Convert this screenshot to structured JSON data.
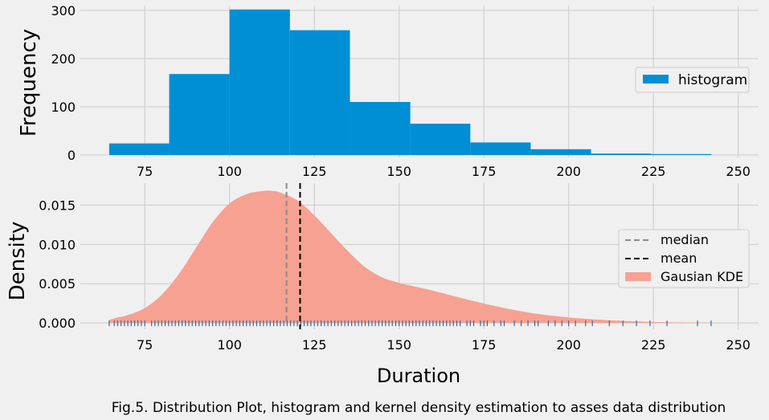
{
  "caption": "Fig.5. Distribution Plot, histogram and kernel density estimation to asses data distribution",
  "colors": {
    "background": "#f0f0f0",
    "grid": "#cbcbcb",
    "histogram": "#008fd5",
    "kde_fill": "#f6a191",
    "median": "#8b8b8b",
    "mean": "#000000",
    "rug": "#2b6fa8",
    "text": "#000000"
  },
  "chart_data": [
    {
      "type": "bar",
      "title": "",
      "xlabel": "",
      "ylabel": "Frequency",
      "xlim": [
        56,
        256
      ],
      "ylim": [
        -5,
        310
      ],
      "xticks": [
        75,
        100,
        125,
        150,
        175,
        200,
        225,
        250
      ],
      "yticks": [
        0,
        100,
        200,
        300
      ],
      "grid": true,
      "legend": {
        "placement": "right",
        "entries": [
          "histogram"
        ]
      },
      "bins": [
        {
          "x0": 64.5,
          "x1": 82.2,
          "count": 24
        },
        {
          "x0": 82.2,
          "x1": 100.0,
          "count": 168
        },
        {
          "x0": 100.0,
          "x1": 117.8,
          "count": 302
        },
        {
          "x0": 117.8,
          "x1": 135.5,
          "count": 259
        },
        {
          "x0": 135.5,
          "x1": 153.3,
          "count": 110
        },
        {
          "x0": 153.3,
          "x1": 171.0,
          "count": 65
        },
        {
          "x0": 171.0,
          "x1": 188.8,
          "count": 26
        },
        {
          "x0": 188.8,
          "x1": 206.6,
          "count": 12
        },
        {
          "x0": 206.6,
          "x1": 224.3,
          "count": 3
        },
        {
          "x0": 224.3,
          "x1": 242.1,
          "count": 2
        }
      ],
      "series": [
        {
          "name": "histogram"
        }
      ]
    },
    {
      "type": "area",
      "title": "",
      "xlabel": "Duration",
      "ylabel": "Density",
      "xlim": [
        56,
        256
      ],
      "ylim": [
        -0.0008,
        0.0178
      ],
      "xticks": [
        75,
        100,
        125,
        150,
        175,
        200,
        225,
        250
      ],
      "yticks": [
        0.0,
        0.005,
        0.01,
        0.015
      ],
      "ytick_labels": [
        "0.000",
        "0.005",
        "0.010",
        "0.015"
      ],
      "grid": true,
      "legend": {
        "placement": "right",
        "entries": [
          "median",
          "mean",
          "Gausian KDE"
        ]
      },
      "kde": {
        "x": [
          64.5,
          67,
          70,
          75,
          80,
          85,
          90,
          95,
          100,
          105,
          110,
          112.5,
          115,
          120,
          125,
          130,
          135,
          140,
          145,
          150,
          155,
          160,
          170,
          180,
          190,
          200,
          210,
          220,
          230,
          242
        ],
        "y": [
          0.0004,
          0.0007,
          0.001,
          0.0019,
          0.0036,
          0.0062,
          0.0095,
          0.0128,
          0.0152,
          0.0164,
          0.0168,
          0.0168,
          0.0166,
          0.0156,
          0.0137,
          0.0114,
          0.0091,
          0.0071,
          0.0058,
          0.0051,
          0.0046,
          0.0041,
          0.003,
          0.002,
          0.0012,
          0.0007,
          0.0004,
          0.0002,
          0.0001,
          5e-05
        ]
      },
      "median": 116.8,
      "mean": 120.8,
      "rug": [
        64.5,
        66,
        67,
        68,
        69,
        70,
        71,
        72,
        73,
        74,
        75,
        77,
        78,
        79,
        80,
        81,
        82,
        83,
        84,
        85,
        86,
        87,
        88,
        89,
        90,
        91,
        92,
        93,
        94,
        95,
        96,
        97,
        98,
        99,
        100,
        101,
        102,
        103,
        104,
        105,
        106,
        107,
        108,
        109,
        110,
        111,
        112,
        113,
        114,
        115,
        116,
        117,
        118,
        119,
        120,
        121,
        122,
        123,
        124,
        125,
        126,
        127,
        128,
        129,
        130,
        131,
        132,
        133,
        134,
        135,
        136,
        137,
        138,
        139,
        140,
        141,
        142,
        143,
        144,
        145,
        146,
        147,
        148,
        149,
        150,
        151,
        152,
        153,
        154,
        155,
        156,
        157,
        158,
        159,
        160,
        161,
        162,
        163,
        164,
        165,
        166,
        167,
        168,
        170,
        171,
        172,
        174,
        175,
        176,
        178,
        180,
        181,
        184,
        186,
        188,
        190,
        191,
        194,
        196,
        198,
        200,
        202,
        205,
        207,
        212,
        216,
        220,
        224,
        229,
        238,
        242
      ],
      "series": [
        {
          "name": "median"
        },
        {
          "name": "mean"
        },
        {
          "name": "Gausian KDE"
        }
      ]
    }
  ]
}
